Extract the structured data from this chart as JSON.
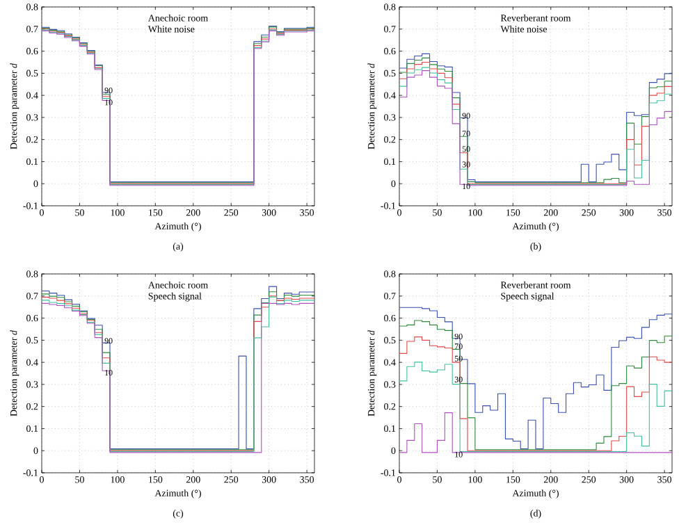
{
  "chart_data": [
    {
      "type": "step",
      "title": "Anechoic room",
      "subtitle": "White noise",
      "xlabel": "Azimuth (°)",
      "ylabel": "Detection parameter *d*",
      "annotations": [
        "(a)"
      ],
      "grid": true,
      "xlim": [
        0,
        360
      ],
      "ylim": [
        -0.1,
        0.8
      ],
      "xticks": [
        0,
        50,
        100,
        150,
        200,
        250,
        300,
        350
      ],
      "yticks": [
        -0.1,
        0,
        0.1,
        0.2,
        0.3,
        0.4,
        0.5,
        0.6,
        0.7,
        0.8
      ],
      "x": [
        0,
        10,
        20,
        30,
        40,
        50,
        60,
        70,
        80,
        90,
        100,
        110,
        120,
        130,
        140,
        150,
        160,
        170,
        180,
        190,
        200,
        210,
        220,
        230,
        240,
        250,
        260,
        270,
        280,
        290,
        300,
        310,
        320,
        330,
        340,
        350,
        360
      ],
      "series": [
        {
          "name": "90",
          "color": "#3a4fb0",
          "values": [
            0.7,
            0.69,
            0.685,
            0.67,
            0.655,
            0.63,
            0.595,
            0.53,
            0.405,
            0,
            0,
            0,
            0,
            0,
            0,
            0,
            0,
            0,
            0,
            0,
            0,
            0,
            0,
            0,
            0,
            0,
            0,
            0,
            0.635,
            0.665,
            0.705,
            0.68,
            0.695,
            0.695,
            0.695,
            0.7,
            0.7
          ]
        },
        {
          "color": "#2e8b3e",
          "values": [
            0.7,
            0.69,
            0.685,
            0.67,
            0.655,
            0.63,
            0.595,
            0.53,
            0.4,
            0,
            0,
            0,
            0,
            0,
            0,
            0,
            0,
            0,
            0,
            0,
            0,
            0,
            0,
            0,
            0,
            0,
            0,
            0,
            0.63,
            0.66,
            0.705,
            0.68,
            0.695,
            0.695,
            0.695,
            0.7,
            0.7
          ]
        },
        {
          "color": "#e04848",
          "values": [
            0.7,
            0.69,
            0.685,
            0.67,
            0.655,
            0.63,
            0.595,
            0.525,
            0.395,
            0,
            0,
            0,
            0,
            0,
            0,
            0,
            0,
            0,
            0,
            0,
            0,
            0,
            0,
            0,
            0,
            0,
            0,
            0,
            0.625,
            0.655,
            0.7,
            0.68,
            0.695,
            0.695,
            0.695,
            0.7,
            0.7
          ]
        },
        {
          "color": "#40c0a0",
          "values": [
            0.7,
            0.69,
            0.685,
            0.67,
            0.655,
            0.63,
            0.595,
            0.525,
            0.39,
            0,
            0,
            0,
            0,
            0,
            0,
            0,
            0,
            0,
            0,
            0,
            0,
            0,
            0,
            0,
            0,
            0,
            0,
            0,
            0.62,
            0.65,
            0.7,
            0.68,
            0.695,
            0.695,
            0.695,
            0.7,
            0.7
          ]
        },
        {
          "name": "10",
          "color": "#b050c0",
          "values": [
            0.7,
            0.69,
            0.685,
            0.67,
            0.655,
            0.63,
            0.595,
            0.525,
            0.385,
            0,
            0,
            0,
            0,
            0,
            0,
            0,
            0,
            0,
            0,
            0,
            0,
            0,
            0,
            0,
            0,
            0,
            0,
            0,
            0.62,
            0.65,
            0.7,
            0.68,
            0.695,
            0.695,
            0.695,
            0.7,
            0.7
          ]
        }
      ]
    },
    {
      "type": "step",
      "title": "Reverberant room",
      "subtitle": "White noise",
      "xlabel": "Azimuth (°)",
      "ylabel": "Detection parameter *d*",
      "annotations": [
        "(b)"
      ],
      "grid": true,
      "xlim": [
        0,
        360
      ],
      "ylim": [
        -0.1,
        0.8
      ],
      "xticks": [
        0,
        50,
        100,
        150,
        200,
        250,
        300,
        350
      ],
      "yticks": [
        -0.1,
        0,
        0.1,
        0.2,
        0.3,
        0.4,
        0.5,
        0.6,
        0.7,
        0.8
      ],
      "x": [
        0,
        10,
        20,
        30,
        40,
        50,
        60,
        70,
        80,
        90,
        100,
        110,
        120,
        130,
        140,
        150,
        160,
        170,
        180,
        190,
        200,
        210,
        220,
        230,
        240,
        250,
        260,
        270,
        280,
        290,
        300,
        310,
        320,
        330,
        340,
        350,
        360
      ],
      "series": [
        {
          "name": "90",
          "color": "#3a4fb0",
          "values": [
            0.515,
            0.555,
            0.57,
            0.58,
            0.545,
            0.525,
            0.52,
            0.405,
            0.29,
            0.01,
            0,
            0,
            0,
            0,
            0,
            0,
            0,
            0,
            0,
            0,
            0,
            0,
            0,
            0,
            0.08,
            0,
            0.08,
            0.09,
            0.125,
            0.055,
            0.315,
            0.3,
            0.305,
            0.45,
            0.465,
            0.49,
            0.49
          ]
        },
        {
          "name": "70",
          "color": "#2e8b3e",
          "values": [
            0.5,
            0.54,
            0.555,
            0.565,
            0.535,
            0.515,
            0.505,
            0.385,
            0.21,
            0.005,
            0,
            0,
            0,
            0,
            0,
            0,
            0,
            0,
            0,
            0,
            0,
            0,
            0,
            0,
            0,
            0,
            0,
            0.015,
            0.02,
            0,
            0.27,
            0.175,
            0.3,
            0.43,
            0.435,
            0.46,
            0.46
          ]
        },
        {
          "name": "50",
          "color": "#e04848",
          "values": [
            0.475,
            0.52,
            0.54,
            0.55,
            0.52,
            0.5,
            0.48,
            0.36,
            0.14,
            0,
            0,
            0,
            0,
            0,
            0,
            0,
            0,
            0,
            0,
            0,
            0,
            0,
            0,
            0,
            0,
            0,
            0,
            0,
            0,
            0,
            0.2,
            0.085,
            0.26,
            0.4,
            0.41,
            0.44,
            0.44
          ]
        },
        {
          "name": "30",
          "color": "#40c0a0",
          "values": [
            0.445,
            0.505,
            0.52,
            0.53,
            0.505,
            0.475,
            0.46,
            0.34,
            0.07,
            0,
            0,
            0,
            0,
            0,
            0,
            0,
            0,
            0,
            0,
            0,
            0,
            0,
            0,
            0,
            0,
            0,
            0,
            0,
            0,
            0,
            0.16,
            0.03,
            0.11,
            0.37,
            0.38,
            0.41,
            0.41
          ]
        },
        {
          "name": "10",
          "color": "#b050c0",
          "values": [
            0.4,
            0.49,
            0.5,
            0.52,
            0.49,
            0.45,
            0.44,
            0.28,
            0.005,
            0,
            0,
            0,
            0,
            0,
            0,
            0,
            0,
            0,
            0,
            0,
            0,
            0,
            0,
            0,
            0,
            0,
            0,
            0,
            0,
            0,
            0.02,
            0.005,
            0.005,
            0.275,
            0.305,
            0.335,
            0.335
          ]
        }
      ]
    },
    {
      "type": "step",
      "title": "Anechoic room",
      "subtitle": "Speech signal",
      "xlabel": "Azimuth (°)",
      "ylabel": "Detection parameter *d*",
      "annotations": [
        "(c)"
      ],
      "grid": true,
      "xlim": [
        0,
        360
      ],
      "ylim": [
        -0.1,
        0.8
      ],
      "xticks": [
        0,
        50,
        100,
        150,
        200,
        250,
        300,
        350
      ],
      "yticks": [
        -0.1,
        0,
        0.1,
        0.2,
        0.3,
        0.4,
        0.5,
        0.6,
        0.7,
        0.8
      ],
      "x": [
        0,
        10,
        20,
        30,
        40,
        50,
        60,
        70,
        80,
        90,
        100,
        110,
        120,
        130,
        140,
        150,
        160,
        170,
        180,
        190,
        200,
        210,
        220,
        230,
        240,
        250,
        260,
        270,
        280,
        290,
        300,
        310,
        320,
        330,
        340,
        350,
        360
      ],
      "series": [
        {
          "name": "90",
          "color": "#3a4fb0",
          "values": [
            0.715,
            0.705,
            0.695,
            0.675,
            0.655,
            0.625,
            0.59,
            0.56,
            0.48,
            0,
            0,
            0,
            0,
            0,
            0,
            0,
            0,
            0,
            0,
            0,
            0,
            0,
            0,
            0,
            0,
            0,
            0.42,
            0,
            0.635,
            0.68,
            0.735,
            0.68,
            0.705,
            0.7,
            0.71,
            0.71,
            0.71
          ]
        },
        {
          "color": "#2e8b3e",
          "values": [
            0.705,
            0.695,
            0.69,
            0.67,
            0.65,
            0.625,
            0.59,
            0.545,
            0.44,
            0,
            0,
            0,
            0,
            0,
            0,
            0,
            0,
            0,
            0,
            0,
            0,
            0,
            0,
            0,
            0,
            0,
            0,
            0,
            0.61,
            0.665,
            0.715,
            0.675,
            0.7,
            0.695,
            0.7,
            0.7,
            0.7
          ]
        },
        {
          "color": "#e04848",
          "values": [
            0.695,
            0.69,
            0.68,
            0.665,
            0.645,
            0.62,
            0.59,
            0.535,
            0.42,
            0,
            0,
            0,
            0,
            0,
            0,
            0,
            0,
            0,
            0,
            0,
            0,
            0,
            0,
            0,
            0,
            0,
            0,
            0,
            0.585,
            0.65,
            0.7,
            0.68,
            0.69,
            0.685,
            0.69,
            0.69,
            0.69
          ]
        },
        {
          "color": "#40c0a0",
          "values": [
            0.685,
            0.675,
            0.67,
            0.66,
            0.64,
            0.62,
            0.585,
            0.53,
            0.4,
            0,
            0,
            0,
            0,
            0,
            0,
            0,
            0,
            0,
            0,
            0,
            0,
            0,
            0,
            0,
            0,
            0,
            0,
            0,
            0.515,
            0.565,
            0.7,
            0.67,
            0.685,
            0.68,
            0.685,
            0.685,
            0.685
          ]
        },
        {
          "name": "10",
          "color": "#b050c0",
          "values": [
            0.675,
            0.67,
            0.665,
            0.655,
            0.64,
            0.62,
            0.585,
            0.52,
            0.37,
            0,
            0,
            0,
            0,
            0,
            0,
            0,
            0,
            0,
            0,
            0,
            0,
            0,
            0,
            0,
            0,
            0,
            0,
            0,
            0,
            0.675,
            0.675,
            0.67,
            0.675,
            0.67,
            0.675,
            0.675,
            0.675
          ]
        }
      ]
    },
    {
      "type": "step",
      "title": "Reverberant room",
      "subtitle": "Speech signal",
      "xlabel": "Azimuth (°)",
      "ylabel": "Detection parameter *d*",
      "annotations": [
        "(d)"
      ],
      "grid": true,
      "xlim": [
        0,
        360
      ],
      "ylim": [
        -0.1,
        0.8
      ],
      "xticks": [
        0,
        50,
        100,
        150,
        200,
        250,
        300,
        350
      ],
      "yticks": [
        -0.1,
        0,
        0.1,
        0.2,
        0.3,
        0.4,
        0.5,
        0.6,
        0.7,
        0.8
      ],
      "x": [
        0,
        10,
        20,
        30,
        40,
        50,
        60,
        70,
        80,
        90,
        100,
        110,
        120,
        130,
        140,
        150,
        160,
        170,
        180,
        190,
        200,
        210,
        220,
        230,
        240,
        250,
        260,
        270,
        280,
        290,
        300,
        310,
        320,
        330,
        340,
        350,
        360
      ],
      "series": [
        {
          "name": "90",
          "color": "#3a4fb0",
          "values": [
            0.64,
            0.64,
            0.64,
            0.635,
            0.625,
            0.595,
            0.575,
            0.5,
            0.405,
            0.295,
            0.165,
            0.195,
            0.175,
            0.25,
            0.045,
            0.035,
            0,
            0.13,
            0,
            0.23,
            0.205,
            0.165,
            0.25,
            0.3,
            0.28,
            0.29,
            0.335,
            0.265,
            0.46,
            0.49,
            0.505,
            0.5,
            0.55,
            0.585,
            0.605,
            0.61,
            0.61
          ]
        },
        {
          "name": "70",
          "color": "#2e8b3e",
          "values": [
            0.56,
            0.565,
            0.585,
            0.58,
            0.565,
            0.545,
            0.54,
            0.455,
            0.3,
            0.145,
            0,
            0,
            0,
            0,
            0,
            0,
            0,
            0,
            0,
            0,
            0,
            0,
            0,
            0,
            0,
            0,
            0.03,
            0.06,
            0.29,
            0.3,
            0.38,
            0.37,
            0.42,
            0.495,
            0.485,
            0.515,
            0.515
          ]
        },
        {
          "name": "50",
          "color": "#e04848",
          "values": [
            0.44,
            0.495,
            0.515,
            0.5,
            0.475,
            0.47,
            0.465,
            0.4,
            0.145,
            0,
            0,
            0,
            0,
            0,
            0,
            0,
            0,
            0,
            0,
            0,
            0,
            0,
            0,
            0,
            0,
            0,
            0,
            0,
            0.045,
            0.065,
            0.29,
            0.245,
            0.265,
            0.425,
            0.41,
            0.4,
            0.4
          ]
        },
        {
          "name": "30",
          "color": "#40c0a0",
          "values": [
            0.32,
            0.385,
            0.405,
            0.365,
            0.36,
            0.37,
            0.395,
            0.305,
            0,
            0,
            0,
            0,
            0,
            0,
            0,
            0,
            0,
            0,
            0,
            0,
            0,
            0,
            0,
            0,
            0,
            0,
            0,
            0,
            0,
            0,
            0.085,
            0.07,
            0.025,
            0.305,
            0.205,
            0.275,
            0.275
          ]
        },
        {
          "name": "10",
          "color": "#b050c0",
          "values": [
            0,
            0.055,
            0.13,
            0,
            0,
            0.055,
            0.18,
            0,
            0,
            0,
            0,
            0,
            0,
            0,
            0,
            0,
            0,
            0,
            0,
            0,
            0,
            0,
            0,
            0,
            0,
            0,
            0,
            0,
            0,
            0,
            0,
            0,
            0,
            0,
            0,
            0,
            0
          ]
        }
      ]
    }
  ]
}
